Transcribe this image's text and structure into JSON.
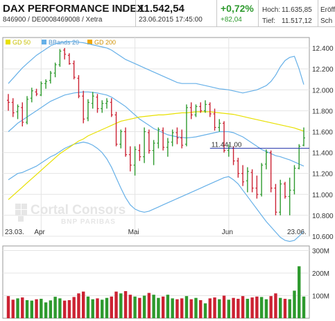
{
  "header": {
    "title": "DAX PERFORMANCE INDEX",
    "subtitle": "846900 / DE0008469008 / Xetra",
    "last": "11.542,54",
    "datetime": "23.06.2015 17:45:00",
    "change_pct": "+0,72%",
    "change_abs": "+82,04",
    "high_label": "Hoch:",
    "high_value": "11.635,85",
    "low_label": "Tief:",
    "low_value": "11.517,12",
    "open_label": "Eröff",
    "close_label": "Sch"
  },
  "colors": {
    "up": "#2e9a2e",
    "down": "#cc2233",
    "bb": "#66b0e8",
    "gd50": "#e8e000",
    "gd200": "#f0a800",
    "volume_up": "#2e9a2e",
    "volume_down": "#cc2233",
    "hline": "#2233aa"
  },
  "chart_data": [
    {
      "type": "candlestick",
      "legend": [
        "GD 50",
        "BBands 20",
        "GD 200"
      ],
      "x_ticks": [
        "23.03.",
        "Apr",
        "Mai",
        "Jun",
        "23.06."
      ],
      "y_ticks": [
        "12.400",
        "12.200",
        "12.000",
        "11.800",
        "11.600",
        "11.400",
        "11.200",
        "11.000",
        "10.800",
        "10.600"
      ],
      "ylim": [
        10600,
        12500
      ],
      "reference_line": {
        "label": "11.441,00",
        "value": 11441
      },
      "x": [
        "23.03.",
        "24.03.",
        "25.03.",
        "26.03.",
        "27.03.",
        "30.03.",
        "31.03.",
        "01.04.",
        "02.04.",
        "07.04.",
        "08.04.",
        "09.04.",
        "10.04.",
        "13.04.",
        "14.04.",
        "15.04.",
        "16.04.",
        "17.04.",
        "20.04.",
        "21.04.",
        "22.04.",
        "23.04.",
        "24.04.",
        "27.04.",
        "28.04.",
        "29.04.",
        "30.04.",
        "04.05.",
        "05.05.",
        "06.05.",
        "07.05.",
        "08.05.",
        "11.05.",
        "12.05.",
        "13.05.",
        "14.05.",
        "15.05.",
        "18.05.",
        "19.05.",
        "20.05.",
        "21.05.",
        "22.05.",
        "25.05.",
        "26.05.",
        "27.05.",
        "28.05.",
        "29.05.",
        "01.06.",
        "02.06.",
        "03.06.",
        "04.06.",
        "05.06.",
        "08.06.",
        "09.06.",
        "10.06.",
        "11.06.",
        "12.06.",
        "15.06.",
        "16.06.",
        "17.06.",
        "18.06.",
        "19.06.",
        "22.06.",
        "23.06."
      ],
      "series": [
        {
          "name": "DAX",
          "values": [
            {
              "open": 11900,
              "high": 11960,
              "low": 11800,
              "close": 11880
            },
            {
              "open": 11880,
              "high": 11920,
              "low": 11740,
              "close": 11780
            },
            {
              "open": 11790,
              "high": 11860,
              "low": 11720,
              "close": 11840
            },
            {
              "open": 11830,
              "high": 11880,
              "low": 11650,
              "close": 11690
            },
            {
              "open": 11690,
              "high": 11940,
              "low": 11670,
              "close": 11910
            },
            {
              "open": 11920,
              "high": 12020,
              "low": 11880,
              "close": 11990
            },
            {
              "open": 11980,
              "high": 12010,
              "low": 11940,
              "close": 11960
            },
            {
              "open": 11950,
              "high": 12080,
              "low": 11940,
              "close": 12060
            },
            {
              "open": 12060,
              "high": 12100,
              "low": 12010,
              "close": 12080
            },
            {
              "open": 12090,
              "high": 12180,
              "low": 12060,
              "close": 12160
            },
            {
              "open": 12160,
              "high": 12260,
              "low": 12120,
              "close": 12240
            },
            {
              "open": 12240,
              "high": 12390,
              "low": 12220,
              "close": 12370
            },
            {
              "open": 12380,
              "high": 12400,
              "low": 12290,
              "close": 12340
            },
            {
              "open": 12330,
              "high": 12350,
              "low": 12240,
              "close": 12250
            },
            {
              "open": 12250,
              "high": 12280,
              "low": 12100,
              "close": 12120
            },
            {
              "open": 12110,
              "high": 12140,
              "low": 11920,
              "close": 11940
            },
            {
              "open": 11940,
              "high": 11990,
              "low": 11680,
              "close": 11720
            },
            {
              "open": 11730,
              "high": 11910,
              "low": 11700,
              "close": 11880
            },
            {
              "open": 11870,
              "high": 11980,
              "low": 11820,
              "close": 11940
            },
            {
              "open": 11930,
              "high": 11960,
              "low": 11780,
              "close": 11820
            },
            {
              "open": 11820,
              "high": 11900,
              "low": 11780,
              "close": 11870
            },
            {
              "open": 11870,
              "high": 11920,
              "low": 11820,
              "close": 11890
            },
            {
              "open": 11880,
              "high": 11920,
              "low": 11740,
              "close": 11760
            },
            {
              "open": 11760,
              "high": 11790,
              "low": 11460,
              "close": 11480
            },
            {
              "open": 11480,
              "high": 11620,
              "low": 11440,
              "close": 11600
            },
            {
              "open": 11600,
              "high": 11640,
              "low": 11360,
              "close": 11380
            },
            {
              "open": 11380,
              "high": 11460,
              "low": 11220,
              "close": 11280
            },
            {
              "open": 11280,
              "high": 11460,
              "low": 11180,
              "close": 11430
            },
            {
              "open": 11420,
              "high": 11480,
              "low": 11320,
              "close": 11360
            },
            {
              "open": 11360,
              "high": 11640,
              "low": 11300,
              "close": 11600
            },
            {
              "open": 11590,
              "high": 11620,
              "low": 11390,
              "close": 11420
            },
            {
              "open": 11420,
              "high": 11520,
              "low": 11280,
              "close": 11490
            },
            {
              "open": 11490,
              "high": 11640,
              "low": 11440,
              "close": 11620
            },
            {
              "open": 11610,
              "high": 11640,
              "low": 11420,
              "close": 11450
            },
            {
              "open": 11450,
              "high": 11540,
              "low": 11360,
              "close": 11500
            },
            {
              "open": 11500,
              "high": 11620,
              "low": 11460,
              "close": 11590
            },
            {
              "open": 11590,
              "high": 11640,
              "low": 11480,
              "close": 11540
            },
            {
              "open": 11540,
              "high": 11620,
              "low": 11440,
              "close": 11470
            },
            {
              "open": 11480,
              "high": 11860,
              "low": 11460,
              "close": 11830
            },
            {
              "open": 11830,
              "high": 11880,
              "low": 11720,
              "close": 11760
            },
            {
              "open": 11760,
              "high": 11860,
              "low": 11740,
              "close": 11840
            },
            {
              "open": 11840,
              "high": 11880,
              "low": 11780,
              "close": 11800
            },
            {
              "open": 11800,
              "high": 11900,
              "low": 11780,
              "close": 11860
            },
            {
              "open": 11860,
              "high": 11880,
              "low": 11740,
              "close": 11770
            },
            {
              "open": 11770,
              "high": 11820,
              "low": 11610,
              "close": 11640
            },
            {
              "open": 11640,
              "high": 11720,
              "low": 11600,
              "close": 11680
            },
            {
              "open": 11680,
              "high": 11700,
              "low": 11400,
              "close": 11420
            },
            {
              "open": 11420,
              "high": 11480,
              "low": 11360,
              "close": 11440
            },
            {
              "open": 11440,
              "high": 11460,
              "low": 11280,
              "close": 11320
            },
            {
              "open": 11320,
              "high": 11350,
              "low": 11160,
              "close": 11200
            },
            {
              "open": 11200,
              "high": 11280,
              "low": 11080,
              "close": 11120
            },
            {
              "open": 11130,
              "high": 11260,
              "low": 11020,
              "close": 11220
            },
            {
              "open": 11210,
              "high": 11240,
              "low": 11020,
              "close": 11060
            },
            {
              "open": 11060,
              "high": 11180,
              "low": 10960,
              "close": 11000
            },
            {
              "open": 11000,
              "high": 11300,
              "low": 10980,
              "close": 11280
            },
            {
              "open": 11290,
              "high": 11430,
              "low": 11240,
              "close": 11400
            },
            {
              "open": 11400,
              "high": 11420,
              "low": 11020,
              "close": 11060
            },
            {
              "open": 11060,
              "high": 11100,
              "low": 10800,
              "close": 10830
            },
            {
              "open": 10830,
              "high": 11140,
              "low": 10800,
              "close": 11100
            },
            {
              "open": 11100,
              "high": 11120,
              "low": 10960,
              "close": 10980
            },
            {
              "open": 10980,
              "high": 11160,
              "low": 10800,
              "close": 11040
            },
            {
              "open": 11040,
              "high": 11280,
              "low": 11000,
              "close": 11250
            },
            {
              "open": 11250,
              "high": 11480,
              "low": 11240,
              "close": 11460
            },
            {
              "open": 11470,
              "high": 11640,
              "low": 11460,
              "close": 11540
            }
          ]
        },
        {
          "name": "GD 50",
          "values": [
            10950,
            10990,
            11030,
            11070,
            11110,
            11150,
            11190,
            11230,
            11270,
            11310,
            11350,
            11390,
            11420,
            11450,
            11480,
            11510,
            11530,
            11560,
            11580,
            11600,
            11620,
            11640,
            11660,
            11680,
            11700,
            11710,
            11720,
            11730,
            11740,
            11745,
            11750,
            11755,
            11760,
            11760,
            11765,
            11770,
            11775,
            11780,
            11780,
            11785,
            11790,
            11790,
            11790,
            11790,
            11785,
            11780,
            11775,
            11770,
            11765,
            11755,
            11745,
            11735,
            11725,
            11715,
            11705,
            11695,
            11685,
            11675,
            11665,
            11655,
            11645,
            11635,
            11620,
            11605
          ]
        },
        {
          "name": "BBands 20 (oben)",
          "values": [
            12060,
            12110,
            12160,
            12210,
            12250,
            12290,
            12330,
            12360,
            12390,
            12420,
            12440,
            12450,
            12455,
            12460,
            12460,
            12455,
            12450,
            12440,
            12430,
            12420,
            12410,
            12400,
            12380,
            12350,
            12320,
            12290,
            12270,
            12250,
            12230,
            12210,
            12190,
            12170,
            12150,
            12130,
            12110,
            12090,
            12070,
            12060,
            12060,
            12060,
            12060,
            12050,
            12040,
            12030,
            12020,
            12010,
            12005,
            12000,
            11990,
            11980,
            11970,
            11980,
            11990,
            12000,
            12020,
            12040,
            12080,
            12140,
            12220,
            12280,
            12310,
            12320,
            12200,
            12050
          ]
        },
        {
          "name": "BBands 20 (mitte)",
          "values": [
            11600,
            11640,
            11680,
            11710,
            11740,
            11770,
            11800,
            11830,
            11860,
            11890,
            11910,
            11930,
            11950,
            11960,
            11970,
            11975,
            11980,
            11980,
            11975,
            11970,
            11960,
            11950,
            11930,
            11900,
            11870,
            11840,
            11800,
            11760,
            11720,
            11690,
            11660,
            11630,
            11610,
            11590,
            11570,
            11560,
            11550,
            11545,
            11540,
            11545,
            11550,
            11560,
            11570,
            11580,
            11590,
            11600,
            11600,
            11600,
            11590,
            11570,
            11550,
            11520,
            11490,
            11460,
            11430,
            11410,
            11390,
            11370,
            11360,
            11345,
            11330,
            11310,
            11290,
            11270
          ]
        },
        {
          "name": "BBands 20 (unten)",
          "values": [
            11140,
            11170,
            11200,
            11210,
            11230,
            11250,
            11270,
            11300,
            11330,
            11360,
            11380,
            11410,
            11440,
            11460,
            11480,
            11490,
            11500,
            11490,
            11470,
            11440,
            11400,
            11340,
            11260,
            11160,
            11060,
            10970,
            10900,
            10860,
            10840,
            10830,
            10840,
            10860,
            10880,
            10900,
            10920,
            10940,
            10960,
            10980,
            11000,
            11020,
            11040,
            11060,
            11080,
            11100,
            11120,
            11140,
            11160,
            11170,
            11140,
            11100,
            11040,
            10980,
            10920,
            10860,
            10800,
            10740,
            10690,
            10640,
            10590,
            10560,
            10550,
            10560,
            10600,
            10650
          ]
        }
      ]
    },
    {
      "type": "bar",
      "y_ticks": [
        "300M",
        "200M",
        "100M"
      ],
      "ylim": [
        0,
        320000000
      ],
      "x": [
        "23.03.",
        "24.03.",
        "25.03.",
        "26.03.",
        "27.03.",
        "30.03.",
        "31.03.",
        "01.04.",
        "02.04.",
        "07.04.",
        "08.04.",
        "09.04.",
        "10.04.",
        "13.04.",
        "14.04.",
        "15.04.",
        "16.04.",
        "17.04.",
        "20.04.",
        "21.04.",
        "22.04.",
        "23.04.",
        "24.04.",
        "27.04.",
        "28.04.",
        "29.04.",
        "30.04.",
        "04.05.",
        "05.05.",
        "06.05.",
        "07.05.",
        "08.05.",
        "11.05.",
        "12.05.",
        "13.05.",
        "14.05.",
        "15.05.",
        "18.05.",
        "19.05.",
        "20.05.",
        "21.05.",
        "22.05.",
        "25.05.",
        "26.05.",
        "27.05.",
        "28.05.",
        "29.05.",
        "01.06.",
        "02.06.",
        "03.06.",
        "04.06.",
        "05.06.",
        "08.06.",
        "09.06.",
        "10.06.",
        "11.06.",
        "12.06.",
        "15.06.",
        "16.06.",
        "17.06.",
        "18.06.",
        "19.06.",
        "22.06.",
        "23.06."
      ],
      "values": [
        98000000,
        82000000,
        88000000,
        92000000,
        80000000,
        78000000,
        84000000,
        86000000,
        70000000,
        79000000,
        95000000,
        88000000,
        78000000,
        80000000,
        94000000,
        110000000,
        118000000,
        96000000,
        84000000,
        88000000,
        82000000,
        90000000,
        96000000,
        118000000,
        110000000,
        120000000,
        104000000,
        96000000,
        90000000,
        100000000,
        112000000,
        104000000,
        90000000,
        96000000,
        104000000,
        88000000,
        84000000,
        88000000,
        98000000,
        84000000,
        90000000,
        80000000,
        66000000,
        88000000,
        92000000,
        84000000,
        100000000,
        82000000,
        90000000,
        86000000,
        98000000,
        86000000,
        92000000,
        96000000,
        94000000,
        84000000,
        98000000,
        110000000,
        90000000,
        86000000,
        84000000,
        122000000,
        230000000,
        96000000
      ]
    }
  ],
  "watermark": {
    "line1": "Cortal Consors",
    "line2": "BNP PARIBAS"
  }
}
